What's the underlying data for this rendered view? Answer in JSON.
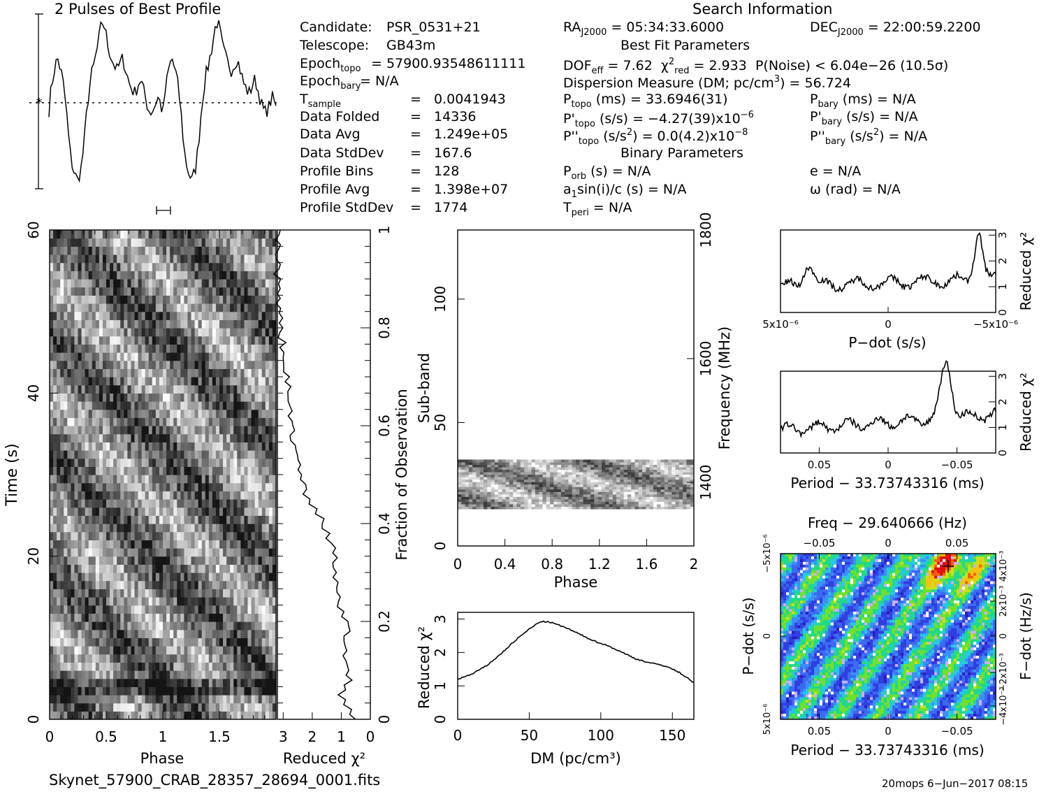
{
  "header": {
    "profile_title": "2 Pulses of Best Profile",
    "search_title": "Search Information",
    "best_fit_title": "Best Fit Parameters",
    "binary_title": "Binary Parameters"
  },
  "info_left": [
    {
      "label": "Candidate:",
      "value": "PSR_0531+21"
    },
    {
      "label": "Telescope:",
      "value": "GB43m"
    },
    {
      "label": "Epoch_topo",
      "value": "= 57900.93548611111"
    },
    {
      "label": "Epoch_bary",
      "value": "= N/A"
    },
    {
      "label": "T_sample",
      "value": "0.0041943"
    },
    {
      "label": "Data Folded",
      "value": "14336"
    },
    {
      "label": "Data Avg",
      "value": "1.249e+05"
    },
    {
      "label": "Data StdDev",
      "value": "167.6"
    },
    {
      "label": "Profile Bins",
      "value": "128"
    },
    {
      "label": "Profile Avg",
      "value": "1.398e+07"
    },
    {
      "label": "Profile StdDev",
      "value": "1774"
    }
  ],
  "info_mid": {
    "ra": "= 05:34:33.6000",
    "dec": "= 22:00:59.2200",
    "dof": "= 7.62",
    "chi2_red": "= 2.933",
    "p_noise": "P(Noise) < 6.04e−26  (10.5σ)",
    "dm": "Dispersion Measure (DM; pc/cm",
    "dm_value": ") = 56.724",
    "p_topo": "(ms) =  33.6946(31)",
    "pd_topo": "(s/s) = −4.27(39)x10",
    "pd_topo_exp": "−6",
    "pdd_topo": "(s/s",
    "pdd_topo_val": ") = 0.0(4.2)x10",
    "pdd_topo_exp": "−8",
    "p_bary": "(ms) = N/A",
    "pd_bary": "(s/s) = N/A",
    "pdd_bary": ") = N/A",
    "p_orb": "(s) = N/A",
    "a1": "sin(i)/c (s) = N/A",
    "t_peri": "= N/A",
    "e": "e = N/A",
    "omega": "ω (rad) = N/A"
  },
  "footer": {
    "filename": "Skynet_57900_CRAB_28357_28694_0001.fits",
    "stamp": "20mops  6−Jun−2017 08:15"
  },
  "chart_data": [
    {
      "type": "line",
      "name": "profile",
      "title": "2 Pulses of Best Profile",
      "x_phase_range": [
        0,
        2
      ],
      "description_values": "two cycles of pulse profile, peaks near phase 0.65 and 1.65, minima near 0.33 and 1.33"
    },
    {
      "type": "heatmap",
      "name": "time-phase",
      "xlabel": "Phase",
      "ylabel": "Time (s)",
      "xlim": [
        0,
        2
      ],
      "ylim": [
        0,
        60
      ],
      "xticks": [
        "0",
        "0.5",
        "1",
        "1.5"
      ],
      "yticks": [
        "0",
        "20",
        "40",
        "60"
      ]
    },
    {
      "type": "line",
      "name": "time-chi2",
      "xlabel": "Reduced χ²",
      "ylabel": "Fraction of Observation",
      "xlim": [
        3.2,
        0
      ],
      "ylim": [
        0,
        1
      ],
      "xticks": [
        "3",
        "2",
        "1",
        "0"
      ],
      "yticks": [
        "0",
        "0.2",
        "0.4",
        "0.6",
        "0.8",
        "1"
      ],
      "x": [
        0.5,
        1.0,
        0.7,
        0.9,
        0.8,
        1.1,
        1.2,
        1.3,
        1.5,
        1.7,
        2.2,
        2.4,
        2.6,
        2.7,
        2.8,
        2.9,
        3.0,
        3.1,
        3.2,
        3.2,
        3.1
      ],
      "y": [
        0,
        0.05,
        0.08,
        0.12,
        0.18,
        0.25,
        0.3,
        0.35,
        0.38,
        0.41,
        0.45,
        0.5,
        0.55,
        0.6,
        0.65,
        0.7,
        0.76,
        0.8,
        0.88,
        0.95,
        1.0
      ]
    },
    {
      "type": "heatmap",
      "name": "subband-phase",
      "xlabel": "Phase",
      "ylabel": "Sub-band",
      "y2label": "Frequency (MHz)",
      "xlim": [
        0,
        2
      ],
      "ylim": [
        0,
        128
      ],
      "xticks": [
        "0",
        "0.4",
        "0.8",
        "1.2",
        "1.6",
        "2"
      ],
      "yticks": [
        "0",
        "50",
        "100"
      ],
      "y2ticks": [
        "1400",
        "1600",
        "1800"
      ]
    },
    {
      "type": "line",
      "name": "dm-chi2",
      "xlabel": "DM (pc/cm³)",
      "ylabel": "Reduced χ²",
      "xlim": [
        0,
        165
      ],
      "ylim": [
        0,
        3.2
      ],
      "xticks": [
        "0",
        "50",
        "100",
        "150"
      ],
      "yticks": [
        "0",
        "1",
        "2",
        "3"
      ],
      "x": [
        0,
        10,
        20,
        30,
        40,
        50,
        58,
        65,
        75,
        85,
        95,
        105,
        115,
        125,
        135,
        145,
        155,
        165
      ],
      "y": [
        1.2,
        1.35,
        1.6,
        1.95,
        2.35,
        2.7,
        2.93,
        2.9,
        2.75,
        2.55,
        2.35,
        2.2,
        2.0,
        1.8,
        1.68,
        1.6,
        1.4,
        1.1
      ]
    },
    {
      "type": "line",
      "name": "pdot-chi2",
      "xlabel": "P−dot (s/s)",
      "ylabel": "Reduced χ²",
      "xlim": [
        5e-06,
        -5e-06
      ],
      "ylim": [
        0,
        3.2
      ],
      "xticks": [
        "5x10⁻⁶",
        "0",
        "−5x10⁻⁶"
      ],
      "yticks": [
        "0",
        "1",
        "2",
        "3"
      ]
    },
    {
      "type": "line",
      "name": "period-chi2",
      "xlabel": "Period − 33.73743316 (ms)",
      "ylabel": "Reduced χ²",
      "xlim": [
        0.09,
        -0.09
      ],
      "ylim": [
        0,
        3.2
      ],
      "xticks": [
        "0.05",
        "0",
        "−0.05"
      ],
      "yticks": [
        "0",
        "1",
        "2",
        "3"
      ]
    },
    {
      "type": "heatmap",
      "name": "pdot-period",
      "title": "Freq − 29.640666 (Hz)",
      "xlabel": "Period − 33.73743316 (ms)",
      "ylabel": "P−dot (s/s)",
      "y2label": "F−dot (Hz/s)",
      "xticks": [
        "0.05",
        "0",
        "−0.05"
      ],
      "x2ticks": [
        "−0.05",
        "0",
        "0.05"
      ],
      "yticks": [
        "5x10⁻⁶",
        "0",
        "−5x10⁻⁶"
      ],
      "y2ticks": [
        "−4x10⁻³",
        "−2x10⁻³",
        "0",
        "2x10⁻³",
        "4x10⁻³"
      ]
    }
  ]
}
